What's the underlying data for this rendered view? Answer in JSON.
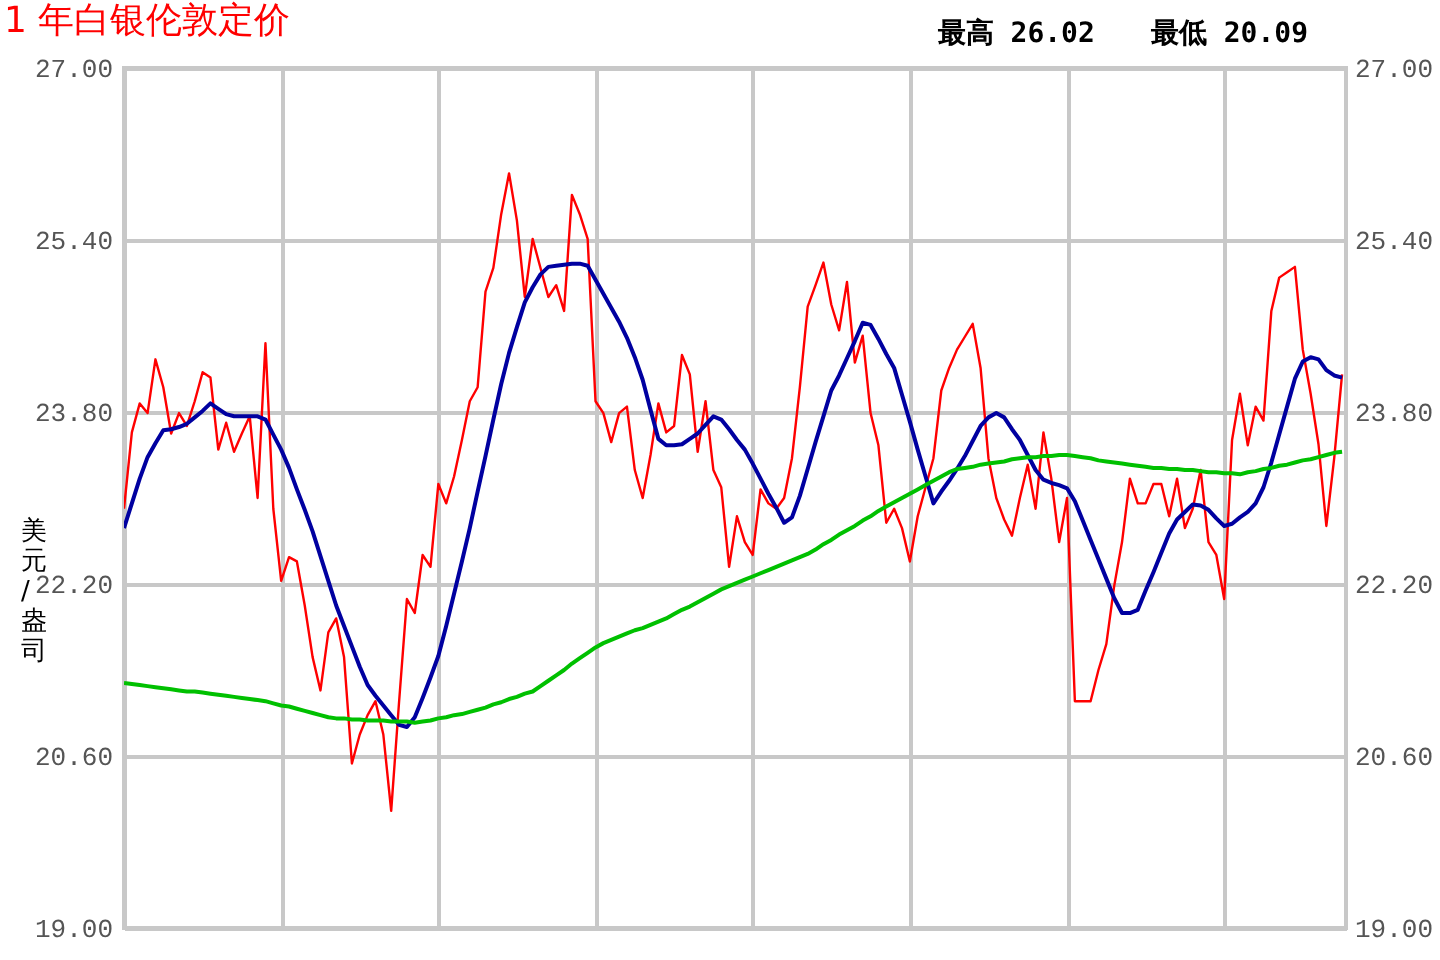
{
  "chart_data": {
    "type": "line",
    "title": "1 年白银伦敦定价",
    "ylabel": "美元/盎司",
    "annotations": [
      "最高 26.02",
      "最低 20.09"
    ],
    "categories": [
      null,
      null,
      null,
      null,
      null,
      null,
      null,
      null,
      null,
      null,
      null,
      null,
      null,
      null,
      null,
      null,
      null,
      null,
      null,
      null,
      null,
      null,
      null,
      null,
      null,
      null,
      null,
      null,
      null,
      null,
      null,
      null,
      null,
      null,
      null,
      null,
      null,
      null,
      null,
      null,
      null,
      null,
      null,
      null,
      null,
      null,
      null,
      null,
      null,
      null,
      null,
      null,
      null,
      null,
      null,
      null,
      null,
      null,
      null,
      null,
      null,
      null,
      null,
      null,
      null,
      null,
      null,
      null,
      null,
      null,
      null,
      null,
      null,
      null,
      null,
      null,
      null,
      null,
      null,
      null,
      null,
      null,
      null,
      null,
      null,
      null,
      null,
      null,
      null,
      null,
      null,
      null,
      null,
      null,
      null,
      null,
      null,
      null,
      null,
      null,
      null,
      null,
      null,
      null,
      null,
      null,
      null,
      null,
      null,
      null,
      null,
      null,
      null,
      null,
      null,
      null,
      null,
      null,
      null,
      null,
      null,
      null,
      null,
      null,
      null,
      null,
      null,
      null,
      null,
      null,
      null,
      null,
      null,
      null,
      null,
      null,
      null,
      null,
      null,
      null,
      null,
      null,
      null,
      null,
      null,
      null,
      null,
      null,
      null,
      null,
      null,
      null,
      null,
      null,
      null,
      null
    ],
    "ylim": [
      19,
      27
    ],
    "yticks": [
      {
        "value": 19,
        "label": "19.00"
      },
      {
        "value": 20.6,
        "label": "20.60"
      },
      {
        "value": 22.2,
        "label": "22.20"
      },
      {
        "value": 23.8,
        "label": "23.80"
      },
      {
        "value": 25.4,
        "label": "25.40"
      },
      {
        "value": 27,
        "label": "27.00"
      }
    ],
    "y2lim": [
      19,
      27
    ],
    "y2ticks": [
      {
        "value": 19,
        "label": "19.00"
      },
      {
        "value": 20.6,
        "label": "20.60"
      },
      {
        "value": 22.2,
        "label": "22.20"
      },
      {
        "value": 23.8,
        "label": "23.80"
      },
      {
        "value": 25.4,
        "label": "25.40"
      },
      {
        "value": 27,
        "label": "27.00"
      }
    ],
    "grid": true,
    "tick_labels": "y",
    "line_style": "solid",
    "series": [
      {
        "color": "#ff0000",
        "values": [
          22.9,
          23.61,
          23.88,
          23.79,
          24.29,
          24.03,
          23.6,
          23.79,
          23.67,
          23.9,
          24.17,
          24.12,
          23.45,
          23.7,
          23.43,
          23.6,
          23.76,
          23.0,
          24.44,
          22.9,
          22.23,
          22.45,
          22.41,
          22.0,
          21.52,
          21.21,
          21.75,
          21.88,
          21.52,
          20.53,
          20.8,
          20.98,
          21.11,
          20.8,
          20.09,
          21.1,
          22.06,
          21.93,
          22.47,
          22.36,
          23.13,
          22.95,
          23.2,
          23.54,
          23.9,
          24.03,
          24.92,
          25.14,
          25.64,
          26.02,
          25.58,
          24.87,
          25.41,
          25.14,
          24.87,
          24.98,
          24.74,
          25.82,
          25.64,
          25.41,
          23.9,
          23.79,
          23.52,
          23.79,
          23.85,
          23.26,
          23.0,
          23.4,
          23.88,
          23.61,
          23.67,
          24.33,
          24.15,
          23.43,
          23.9,
          23.26,
          23.1,
          22.36,
          22.83,
          22.59,
          22.47,
          23.08,
          22.95,
          22.9,
          23.0,
          23.37,
          24.03,
          24.78,
          24.98,
          25.19,
          24.8,
          24.56,
          25.01,
          24.26,
          24.51,
          23.79,
          23.49,
          22.77,
          22.9,
          22.72,
          22.41,
          22.83,
          23.1,
          23.37,
          24.0,
          24.21,
          24.38,
          24.5,
          24.62,
          24.21,
          23.37,
          23.0,
          22.8,
          22.65,
          23.0,
          23.31,
          22.9,
          23.61,
          23.18,
          22.59,
          23.0,
          21.11,
          21.11,
          21.11,
          21.4,
          21.64,
          22.18,
          22.59,
          23.18,
          22.95,
          22.95,
          23.13,
          23.13,
          22.83,
          23.18,
          22.72,
          22.9,
          23.26,
          22.59,
          22.47,
          22.06,
          23.54,
          23.97,
          23.49,
          23.85,
          23.72,
          24.74,
          25.05,
          25.1,
          25.15,
          24.38,
          23.97,
          23.5,
          22.74,
          23.37,
          24.15
        ]
      },
      {
        "color": "#0000a0",
        "values": [
          22.72,
          22.95,
          23.18,
          23.38,
          23.51,
          23.63,
          23.64,
          23.66,
          23.69,
          23.75,
          23.81,
          23.88,
          23.83,
          23.78,
          23.76,
          23.76,
          23.76,
          23.76,
          23.73,
          23.59,
          23.45,
          23.28,
          23.08,
          22.89,
          22.69,
          22.46,
          22.23,
          22.0,
          21.81,
          21.62,
          21.43,
          21.26,
          21.16,
          21.07,
          20.98,
          20.89,
          20.87,
          20.96,
          21.14,
          21.33,
          21.53,
          21.81,
          22.11,
          22.41,
          22.72,
          23.06,
          23.39,
          23.73,
          24.06,
          24.35,
          24.59,
          24.82,
          24.96,
          25.08,
          25.15,
          25.16,
          25.17,
          25.18,
          25.18,
          25.16,
          25.03,
          24.9,
          24.77,
          24.64,
          24.49,
          24.31,
          24.1,
          23.82,
          23.55,
          23.49,
          23.49,
          23.5,
          23.55,
          23.6,
          23.68,
          23.76,
          23.73,
          23.64,
          23.54,
          23.45,
          23.32,
          23.18,
          23.04,
          22.91,
          22.77,
          22.82,
          23.02,
          23.27,
          23.52,
          23.76,
          24.0,
          24.14,
          24.3,
          24.46,
          24.63,
          24.61,
          24.48,
          24.34,
          24.21,
          23.96,
          23.71,
          23.45,
          23.2,
          22.95,
          23.06,
          23.16,
          23.27,
          23.39,
          23.53,
          23.67,
          23.75,
          23.79,
          23.75,
          23.64,
          23.54,
          23.4,
          23.26,
          23.17,
          23.14,
          23.12,
          23.09,
          22.97,
          22.79,
          22.61,
          22.43,
          22.25,
          22.07,
          21.93,
          21.93,
          21.96,
          22.14,
          22.31,
          22.49,
          22.67,
          22.8,
          22.87,
          22.94,
          22.93,
          22.89,
          22.81,
          22.74,
          22.76,
          22.82,
          22.87,
          22.95,
          23.1,
          23.33,
          23.59,
          23.85,
          24.11,
          24.27,
          24.31,
          24.29,
          24.19,
          24.14,
          24.12
        ]
      },
      {
        "color": "#00c000",
        "values": [
          21.28,
          21.27,
          21.26,
          21.25,
          21.24,
          21.23,
          21.22,
          21.21,
          21.2,
          21.2,
          21.19,
          21.18,
          21.17,
          21.16,
          21.15,
          21.14,
          21.13,
          21.12,
          21.11,
          21.09,
          21.07,
          21.06,
          21.04,
          21.02,
          21.0,
          20.98,
          20.96,
          20.95,
          20.95,
          20.94,
          20.94,
          20.93,
          20.93,
          20.93,
          20.92,
          20.92,
          20.92,
          20.91,
          20.92,
          20.93,
          20.95,
          20.96,
          20.98,
          20.99,
          21.01,
          21.03,
          21.05,
          21.08,
          21.1,
          21.13,
          21.15,
          21.18,
          21.2,
          21.25,
          21.3,
          21.35,
          21.4,
          21.46,
          21.51,
          21.56,
          21.61,
          21.65,
          21.68,
          21.71,
          21.74,
          21.77,
          21.79,
          21.82,
          21.85,
          21.88,
          21.92,
          21.96,
          21.99,
          22.03,
          22.07,
          22.11,
          22.15,
          22.18,
          22.21,
          22.24,
          22.27,
          22.3,
          22.33,
          22.36,
          22.39,
          22.42,
          22.45,
          22.48,
          22.52,
          22.57,
          22.61,
          22.66,
          22.7,
          22.74,
          22.79,
          22.83,
          22.88,
          22.92,
          22.96,
          23.0,
          23.04,
          23.08,
          23.12,
          23.16,
          23.2,
          23.24,
          23.27,
          23.28,
          23.29,
          23.31,
          23.32,
          23.33,
          23.34,
          23.36,
          23.37,
          23.38,
          23.38,
          23.39,
          23.39,
          23.4,
          23.4,
          23.39,
          23.38,
          23.37,
          23.35,
          23.34,
          23.33,
          23.32,
          23.31,
          23.3,
          23.29,
          23.28,
          23.28,
          23.27,
          23.27,
          23.26,
          23.26,
          23.25,
          23.24,
          23.24,
          23.23,
          23.23,
          23.22,
          23.24,
          23.25,
          23.27,
          23.28,
          23.3,
          23.31,
          23.33,
          23.35,
          23.36,
          23.38,
          23.4,
          23.42,
          23.43
        ]
      }
    ]
  }
}
